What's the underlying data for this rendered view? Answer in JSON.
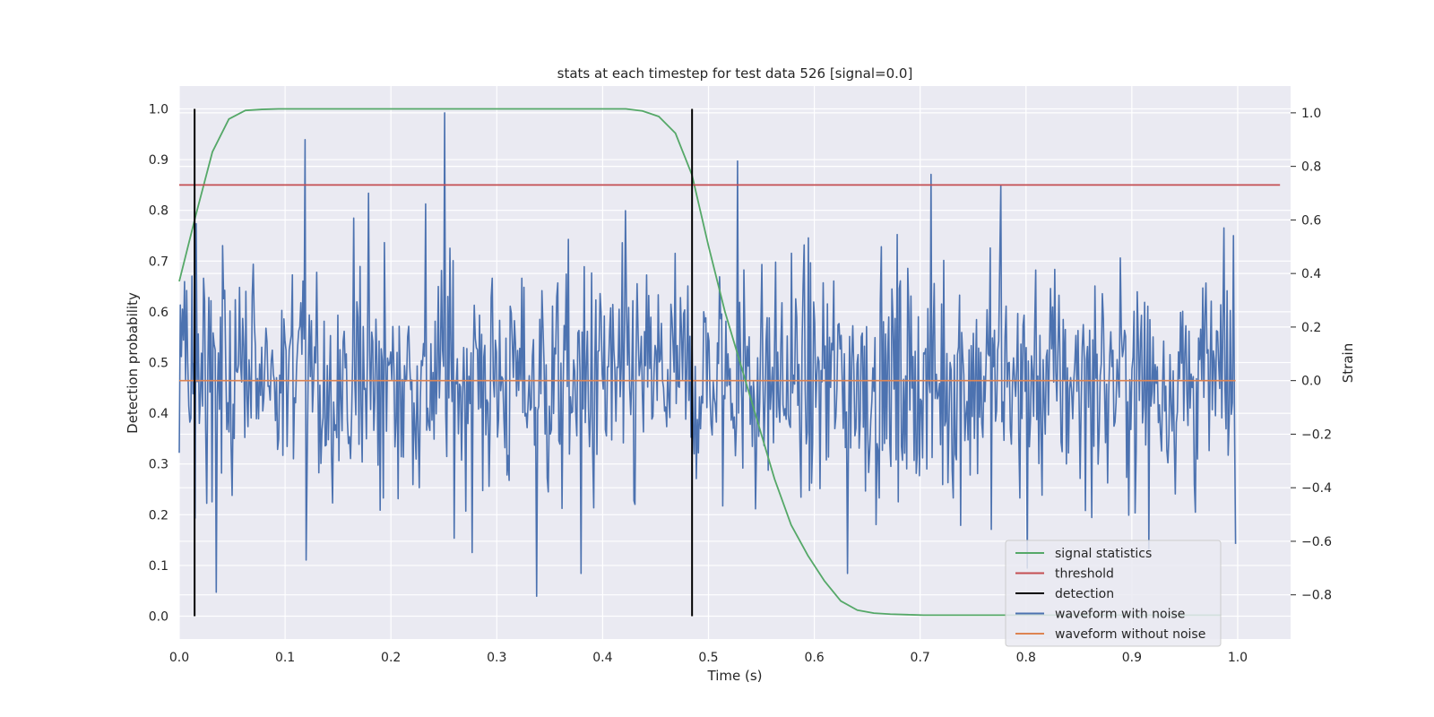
{
  "chart_data": {
    "type": "line",
    "title": "stats at each timestep for test data 526 [signal=0.0]",
    "xlabel": "Time (s)",
    "ylabel": "Detection probability",
    "y2label": "Strain",
    "xlim": [
      0.0,
      1.05
    ],
    "ylim": [
      -0.045,
      1.045
    ],
    "y2lim": [
      -0.965,
      1.1
    ],
    "xticks": [
      "0.0",
      "0.1",
      "0.2",
      "0.3",
      "0.4",
      "0.5",
      "0.6",
      "0.7",
      "0.8",
      "0.9",
      "1.0"
    ],
    "yticks": [
      "0.0",
      "0.1",
      "0.2",
      "0.3",
      "0.4",
      "0.5",
      "0.6",
      "0.7",
      "0.8",
      "0.9",
      "1.0"
    ],
    "y2ticks": [
      "−0.8",
      "−0.6",
      "−0.4",
      "−0.2",
      "0.0",
      "0.2",
      "0.4",
      "0.6",
      "0.8",
      "1.0"
    ],
    "grid": true,
    "legend_position": "lower right",
    "colors": {
      "background": "#eaeaf2",
      "grid": "#ffffff",
      "signal_statistics": "#55a868",
      "threshold": "#c44e52",
      "detection": "#000000",
      "waveform_with_noise": "#4c72b0",
      "waveform_without_noise": "#dd8452"
    },
    "legend": [
      "signal statistics",
      "threshold",
      "detection",
      "waveform with noise",
      "waveform without noise"
    ],
    "series": [
      {
        "name": "signal statistics",
        "axis": "left",
        "x": [
          0.0,
          0.0156,
          0.0313,
          0.0469,
          0.0625,
          0.0781,
          0.0938,
          0.1094,
          0.125,
          0.1406,
          0.1563,
          0.1719,
          0.1875,
          0.2031,
          0.2188,
          0.2344,
          0.25,
          0.2656,
          0.2813,
          0.2969,
          0.3125,
          0.3281,
          0.3438,
          0.3594,
          0.375,
          0.3906,
          0.4063,
          0.4219,
          0.4375,
          0.4531,
          0.4688,
          0.4844,
          0.5,
          0.5156,
          0.5313,
          0.5469,
          0.5625,
          0.5781,
          0.5938,
          0.6094,
          0.625,
          0.6406,
          0.6563,
          0.6719,
          0.6875,
          0.7031,
          0.7188,
          0.7344,
          0.75,
          0.7656,
          0.7813,
          0.7969,
          0.8125,
          0.8281,
          0.8438,
          0.8594,
          0.875,
          0.8906,
          0.9063,
          0.9219,
          0.9375,
          0.9531,
          0.9688,
          0.9844
        ],
        "y": [
          0.66,
          0.79,
          0.915,
          0.98,
          0.997,
          0.999,
          1.0,
          1.0,
          1.0,
          1.0,
          1.0,
          1.0,
          1.0,
          1.0,
          1.0,
          1.0,
          1.0,
          1.0,
          1.0,
          1.0,
          1.0,
          1.0,
          1.0,
          1.0,
          1.0,
          1.0,
          1.0,
          1.0,
          0.996,
          0.985,
          0.952,
          0.87,
          0.73,
          0.6,
          0.49,
          0.38,
          0.27,
          0.18,
          0.12,
          0.07,
          0.03,
          0.012,
          0.006,
          0.004,
          0.003,
          0.002,
          0.002,
          0.002,
          0.002,
          0.002,
          0.002,
          0.002,
          0.002,
          0.002,
          0.002,
          0.002,
          0.002,
          0.002,
          0.002,
          0.002,
          0.002,
          0.002,
          0.002,
          0.002
        ]
      },
      {
        "name": "threshold",
        "axis": "left",
        "x": [
          0.0,
          1.04
        ],
        "y": [
          0.85,
          0.85
        ]
      },
      {
        "name": "detection",
        "axis": "left",
        "x": [
          0.0145,
          0.4845
        ],
        "y": [
          0.0,
          1.0
        ]
      },
      {
        "name": "waveform with noise",
        "axis": "right",
        "x_range": [
          0.0,
          0.998
        ],
        "noise_std": 0.22,
        "noise_clip": [
          -0.8,
          1.0
        ],
        "peaks": [
          {
            "x": 0.251,
            "y": 1.0
          },
          {
            "x": 0.119,
            "y": 0.9
          },
          {
            "x": 0.527,
            "y": 0.82
          },
          {
            "x": 0.71,
            "y": 0.77
          },
          {
            "x": 0.776,
            "y": 0.73
          },
          {
            "x": 0.179,
            "y": 0.7
          },
          {
            "x": 0.035,
            "y": -0.79
          },
          {
            "x": 0.338,
            "y": -0.805
          },
          {
            "x": 0.38,
            "y": -0.72
          },
          {
            "x": 0.12,
            "y": -0.67
          },
          {
            "x": 0.631,
            "y": -0.72
          },
          {
            "x": 0.801,
            "y": -0.7
          },
          {
            "x": 0.916,
            "y": -0.63
          },
          {
            "x": 0.998,
            "y": -0.61
          }
        ]
      },
      {
        "name": "waveform without noise",
        "axis": "right",
        "x": [
          0.0,
          0.998
        ],
        "y": [
          0.0,
          0.0
        ]
      }
    ]
  }
}
